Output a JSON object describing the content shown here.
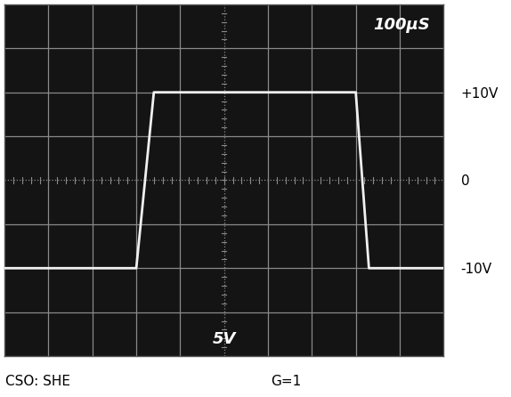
{
  "chart_data": {
    "type": "line",
    "x": [
      0,
      300,
      340,
      800,
      830,
      1000
    ],
    "values": [
      -10,
      -10,
      10,
      10,
      -10,
      -10
    ],
    "color": "#f0f0f0",
    "xlim": [
      0,
      1000
    ],
    "ylim": [
      -20,
      20
    ],
    "yticks": [
      {
        "value": 10,
        "label": "+10V"
      },
      {
        "value": 0,
        "label": "0"
      },
      {
        "value": -10,
        "label": "-10V"
      }
    ],
    "tick_labels": "y",
    "grid": true,
    "annotations": [
      "100µS",
      "5V"
    ],
    "footer": [
      "CSO: SHE",
      "G=1"
    ]
  }
}
